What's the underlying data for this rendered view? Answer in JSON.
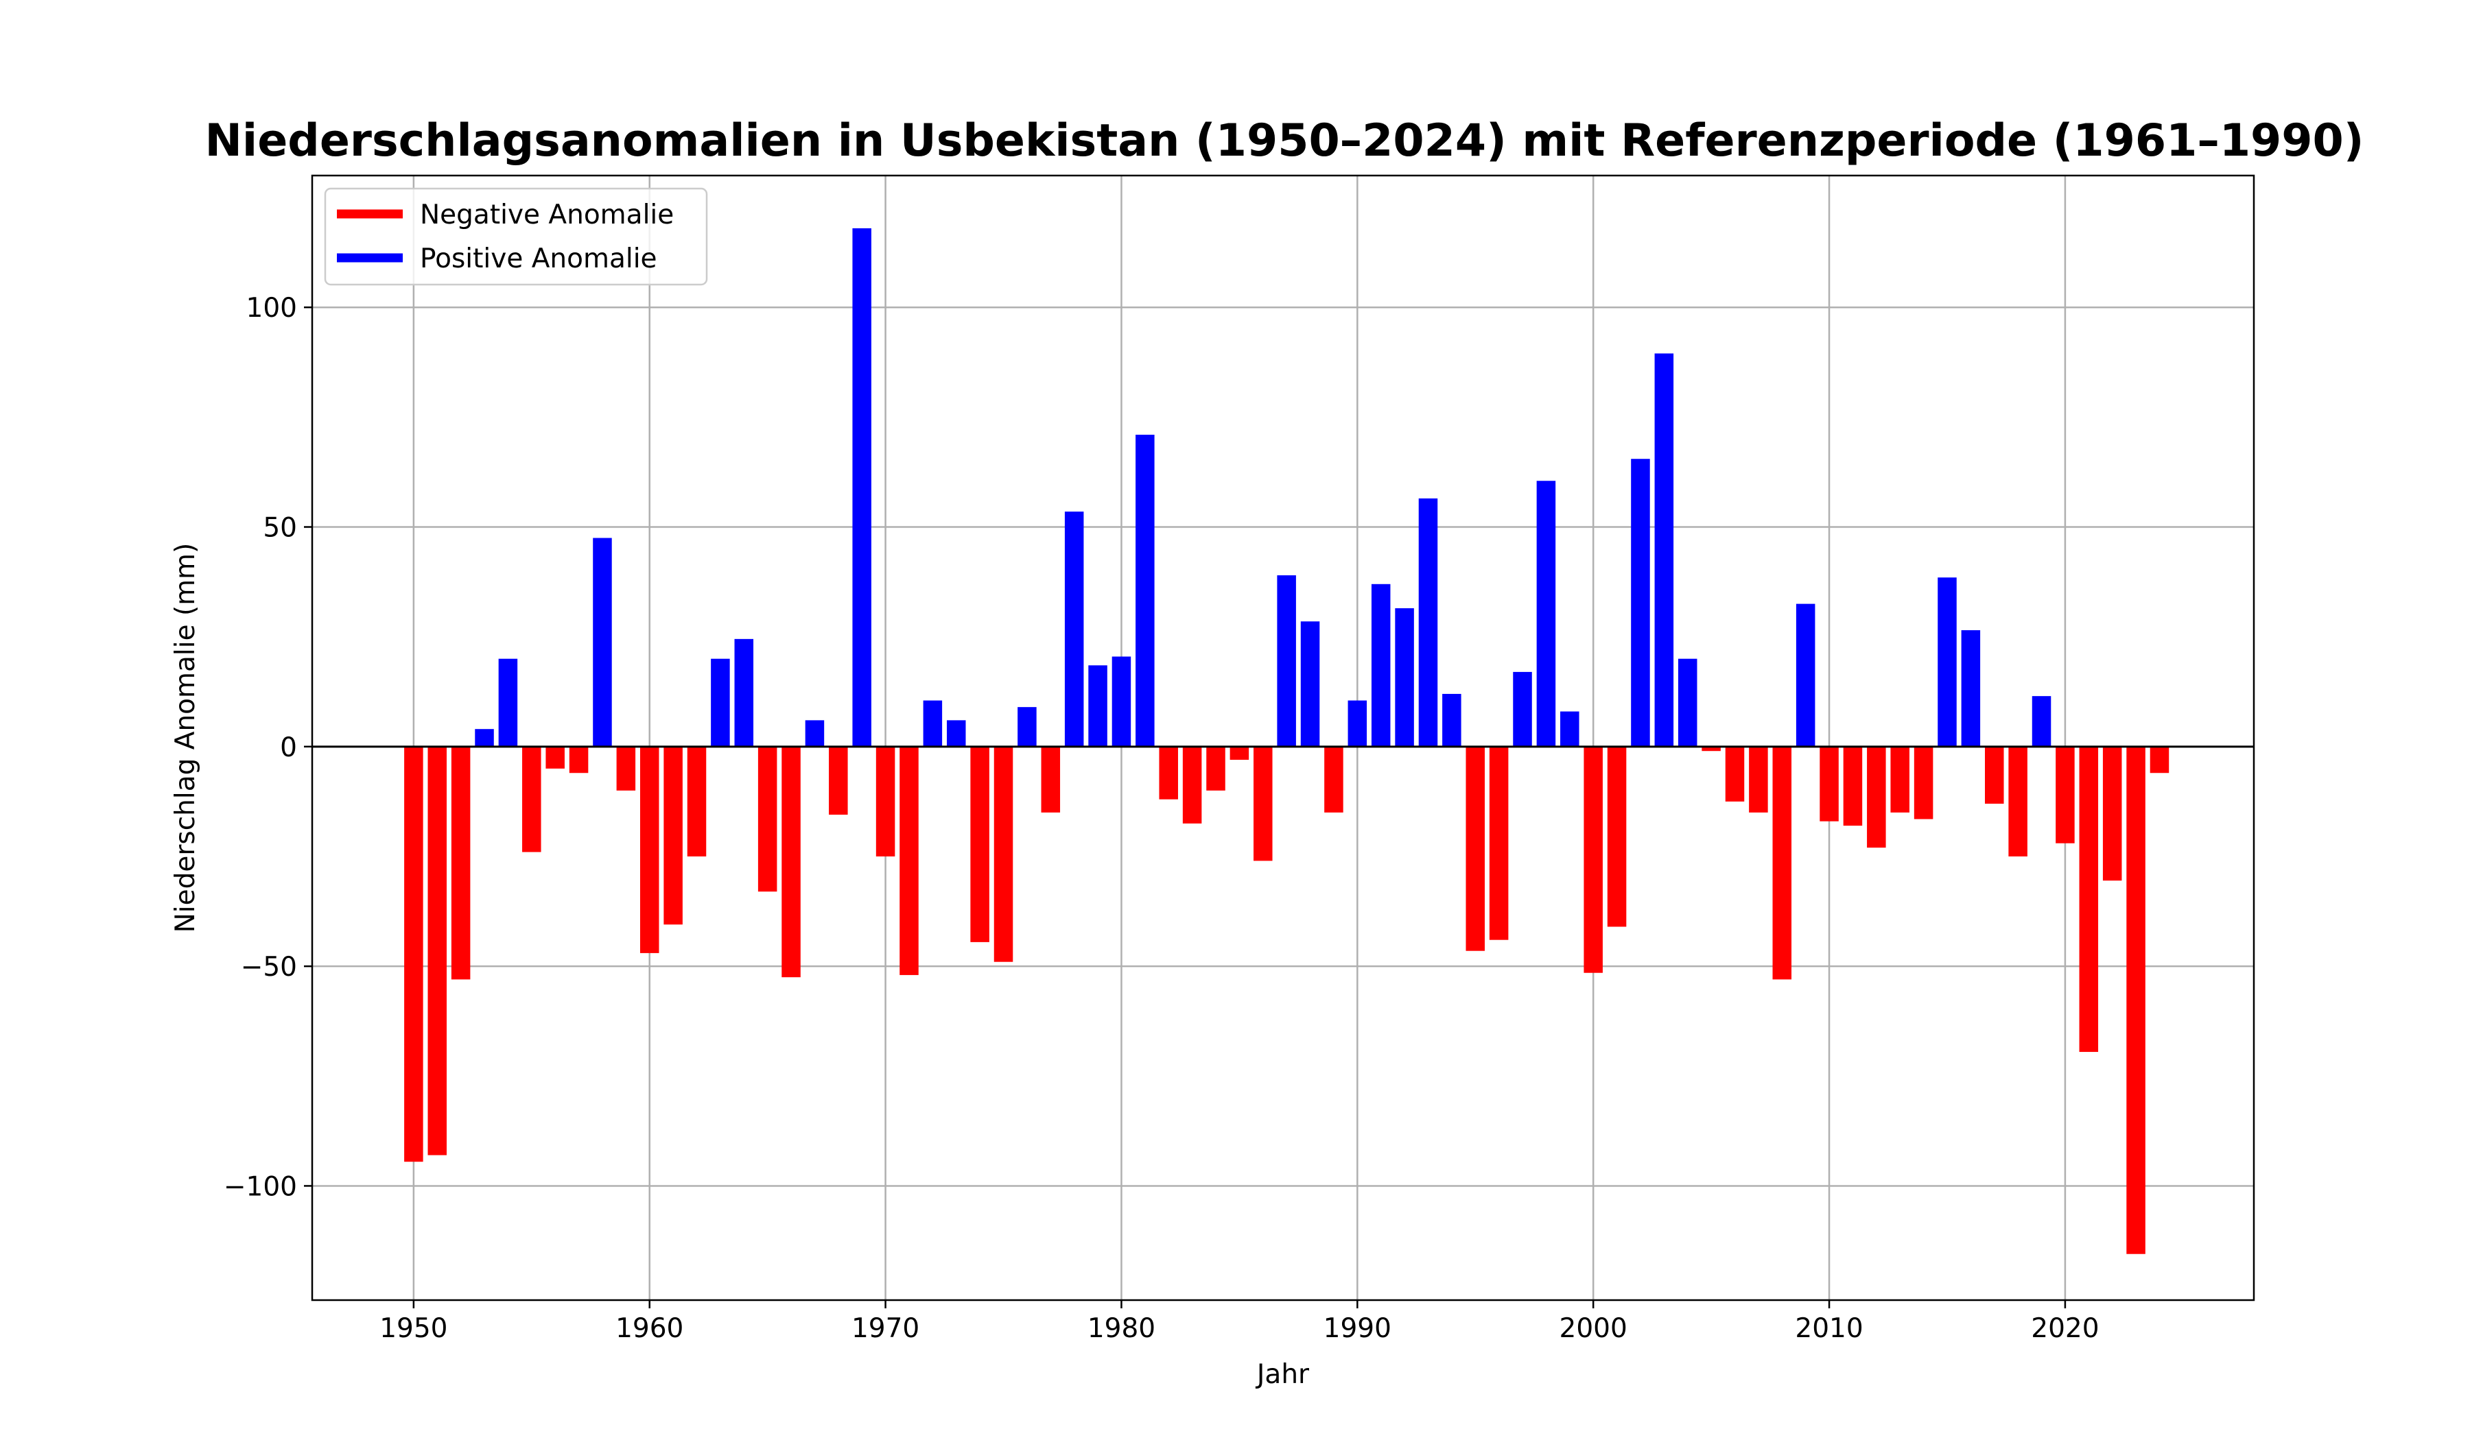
{
  "chart_data": {
    "type": "bar",
    "title": "Niederschlagsanomalien in Usbekistan (1950–2024) mit Referenzperiode (1961–1990)",
    "xlabel": "Jahr",
    "ylabel": "Niederschlag Anomalie (mm)",
    "xlim": [
      1945.7,
      2028.0
    ],
    "ylim": [
      -126,
      130
    ],
    "x_ticks": [
      1950,
      1960,
      1970,
      1980,
      1990,
      2000,
      2010,
      2020
    ],
    "y_ticks": [
      -100,
      -50,
      0,
      50,
      100
    ],
    "y_tick_labels": [
      "−100",
      "−50",
      "0",
      "50",
      "100"
    ],
    "grid": true,
    "legend_position": "upper-left",
    "zero_line": true,
    "colors": {
      "negative": "#ff0000",
      "positive": "#0000ff"
    },
    "legend": [
      {
        "label": "Negative Anomalie",
        "color": "#ff0000"
      },
      {
        "label": "Positive Anomalie",
        "color": "#0000ff"
      }
    ],
    "x": [
      1950,
      1951,
      1952,
      1953,
      1954,
      1955,
      1956,
      1957,
      1958,
      1959,
      1960,
      1961,
      1962,
      1963,
      1964,
      1965,
      1966,
      1967,
      1968,
      1969,
      1970,
      1971,
      1972,
      1973,
      1974,
      1975,
      1976,
      1977,
      1978,
      1979,
      1980,
      1981,
      1982,
      1983,
      1984,
      1985,
      1986,
      1987,
      1988,
      1989,
      1990,
      1991,
      1992,
      1993,
      1994,
      1995,
      1996,
      1997,
      1998,
      1999,
      2000,
      2001,
      2002,
      2003,
      2004,
      2005,
      2006,
      2007,
      2008,
      2009,
      2010,
      2011,
      2012,
      2013,
      2014,
      2015,
      2016,
      2017,
      2018,
      2019,
      2020,
      2021,
      2022,
      2023,
      2024
    ],
    "values": [
      -94.5,
      -93,
      -53,
      4,
      20,
      -24,
      -5,
      -6,
      47.5,
      -10,
      -47,
      -40.5,
      -25,
      20,
      24.5,
      -33,
      -52.5,
      6,
      -15.5,
      118,
      -25,
      -52,
      10.5,
      6,
      -44.5,
      -49,
      9,
      -15,
      53.5,
      18.5,
      20.5,
      71,
      -12,
      -17.5,
      -10,
      -3,
      -26,
      39,
      28.5,
      -15,
      10.5,
      37,
      31.5,
      56.5,
      12,
      -46.5,
      -44,
      17,
      60.5,
      8,
      -51.5,
      -41,
      65.5,
      89.5,
      20,
      -1,
      -12.5,
      -15,
      -53,
      32.5,
      -17,
      -18,
      -23,
      -15,
      -16.5,
      38.5,
      26.5,
      -13,
      -25,
      11.5,
      -22,
      -69.5,
      -30.5,
      -115.5,
      -6
    ]
  }
}
